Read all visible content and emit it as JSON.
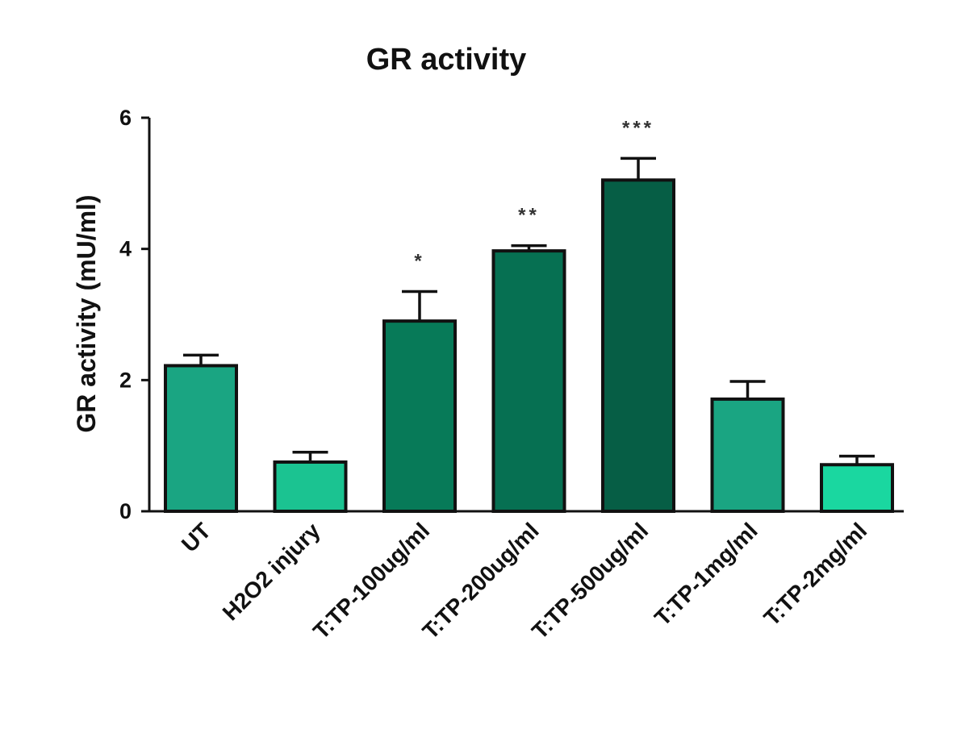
{
  "chart_data": {
    "type": "bar",
    "title": "GR activity",
    "xlabel": "",
    "ylabel": "GR activity (mU/ml)",
    "ylim": [
      0,
      6
    ],
    "yticks": [
      0,
      2,
      4,
      6
    ],
    "grid": false,
    "categories": [
      "UT",
      "H2O2 injury",
      "T:TP-100ug/ml",
      "T:TP-200ug/ml",
      "T:TP-500ug/ml",
      "T:TP-1mg/ml",
      "T:TP-2mg/ml"
    ],
    "values": [
      2.22,
      0.75,
      2.9,
      3.97,
      5.05,
      1.71,
      0.71
    ],
    "errors": [
      0.16,
      0.15,
      0.45,
      0.08,
      0.33,
      0.27,
      0.13
    ],
    "significance": [
      "",
      "",
      "*",
      "**",
      "***",
      "",
      ""
    ],
    "colors": [
      "#1aa582",
      "#1bc391",
      "#077a58",
      "#067052",
      "#065e45",
      "#1aa582",
      "#1ad7a0"
    ]
  }
}
